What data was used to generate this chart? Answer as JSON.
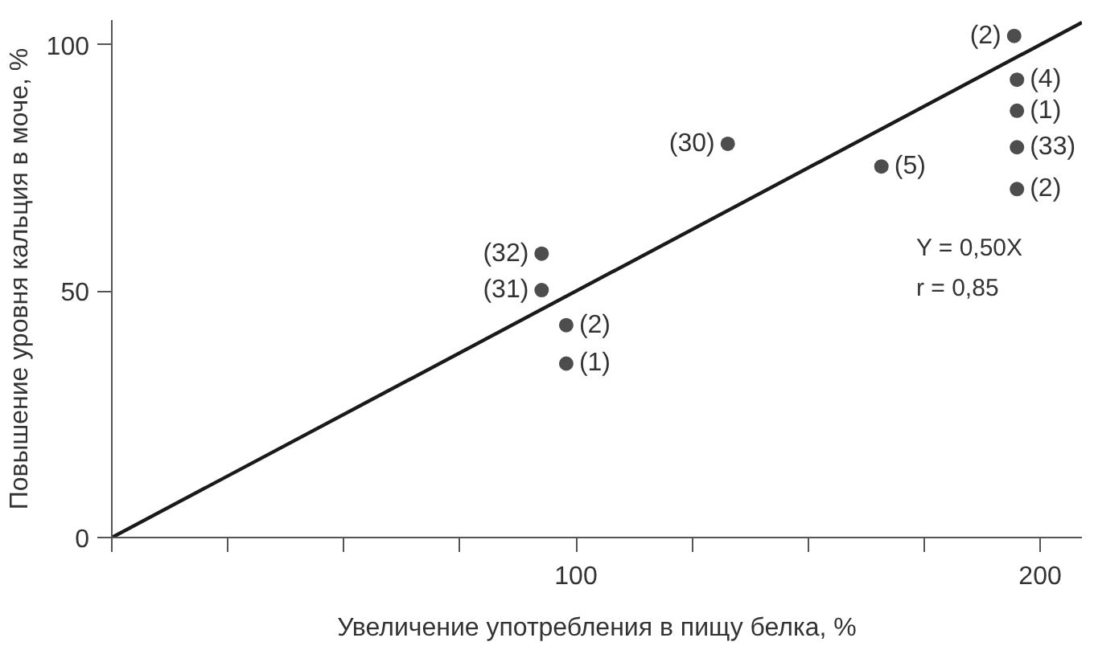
{
  "chart_data": {
    "type": "scatter",
    "xlabel": "Увеличение употребления в пищу белка, %",
    "ylabel": "Повышение уровня кальция в моче, %",
    "xlim": [
      0,
      209
    ],
    "ylim": [
      0,
      105
    ],
    "xticks": [
      {
        "value": 0,
        "label": null
      },
      {
        "value": 25,
        "label": null
      },
      {
        "value": 50,
        "label": null
      },
      {
        "value": 75,
        "label": null
      },
      100,
      {
        "value": 125,
        "label": null
      },
      {
        "value": 150,
        "label": null
      },
      {
        "value": 175,
        "label": null
      },
      200
    ],
    "yticks": [
      0,
      50,
      100
    ],
    "grid": false,
    "series": [
      {
        "marker": "circle",
        "color": "#4d4d4d",
        "x": [
          194.4,
          195,
          195,
          195,
          195,
          132.7,
          165.8,
          92.6,
          92.6,
          97.9,
          97.9
        ],
        "values": [
          101.8,
          92.9,
          86.6,
          79.2,
          70.7,
          79.9,
          75.3,
          57.6,
          50.2,
          43.1,
          35.3
        ]
      },
      {
        "type": "line",
        "color": "#1a1a1a",
        "line_style": "solid",
        "x": [
          0,
          209
        ],
        "values": [
          0,
          104.5
        ]
      }
    ],
    "annotations": [
      {
        "text": "(2)",
        "x": 194.4,
        "y": 101.8
      },
      {
        "text": "(4)",
        "x": 195,
        "y": 92.9
      },
      {
        "text": "(1)",
        "x": 195,
        "y": 86.6
      },
      {
        "text": "(33)",
        "x": 195,
        "y": 79.2
      },
      {
        "text": "(2)",
        "x": 195,
        "y": 70.7
      },
      {
        "text": "(30)",
        "x": 132.7,
        "y": 79.9
      },
      {
        "text": "(5)",
        "x": 165.8,
        "y": 75.3
      },
      {
        "text": "(32)",
        "x": 92.6,
        "y": 57.6
      },
      {
        "text": "(31)",
        "x": 92.6,
        "y": 50.2
      },
      {
        "text": "(2)",
        "x": 97.9,
        "y": 43.1
      },
      {
        "text": "(1)",
        "x": 97.9,
        "y": 35.3
      },
      "Y = 0,50X",
      "r = 0,85"
    ]
  }
}
